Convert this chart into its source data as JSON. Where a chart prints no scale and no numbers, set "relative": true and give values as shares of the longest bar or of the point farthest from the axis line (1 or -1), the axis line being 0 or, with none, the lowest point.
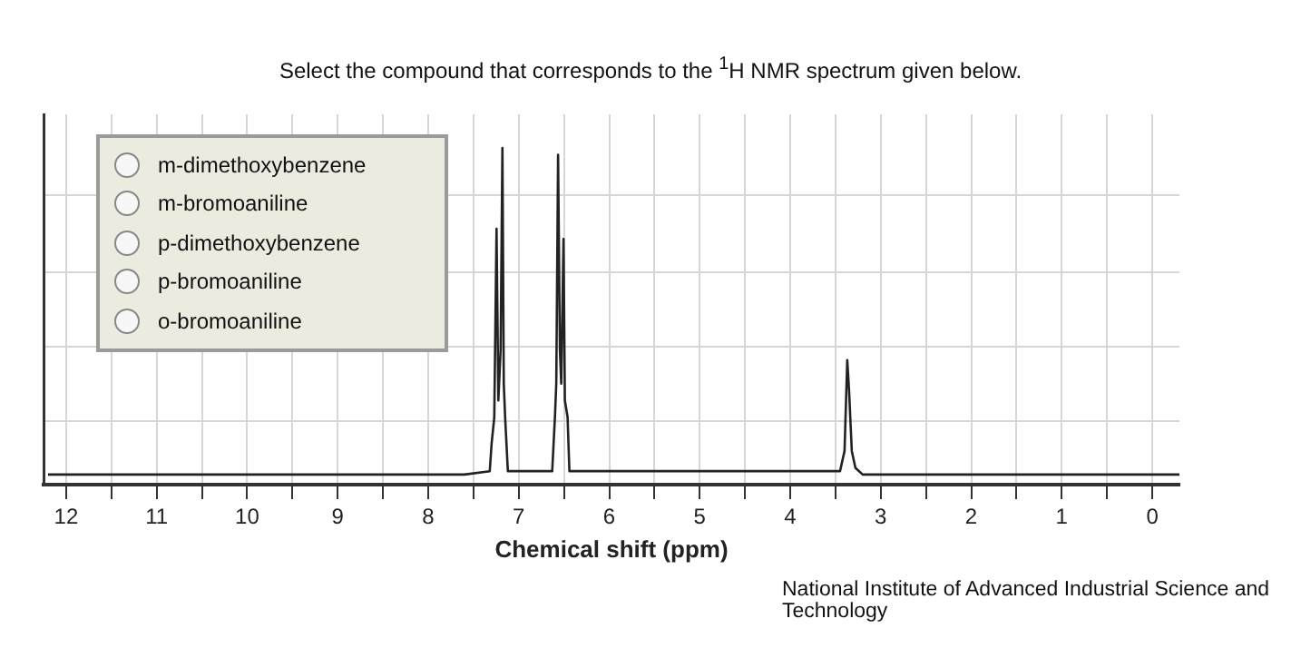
{
  "chart_data": {
    "type": "line",
    "title": "Select the compound that corresponds to the $^{1}$H NMR spectrum given below.",
    "xlabel": "Chemical shift (ppm)",
    "relative": true,
    "grid": true,
    "legend": false,
    "marker": "none",
    "line_style": "solid",
    "xlim": [
      12.25,
      -0.3
    ],
    "xticks": [
      12,
      {
        "value": 11.5,
        "label": null
      },
      11,
      {
        "value": 10.5,
        "label": null
      },
      10,
      {
        "value": 9.5,
        "label": null
      },
      9,
      {
        "value": 8.5,
        "label": null
      },
      8,
      {
        "value": 7.5,
        "label": null
      },
      7,
      {
        "value": 6.5,
        "label": null
      },
      6,
      {
        "value": 5.5,
        "label": null
      },
      5,
      {
        "value": 4.5,
        "label": null
      },
      4,
      {
        "value": 3.5,
        "label": null
      },
      3,
      {
        "value": 2.5,
        "label": null
      },
      2,
      {
        "value": 1.5,
        "label": null
      },
      1,
      {
        "value": 0.5,
        "label": null
      },
      0
    ],
    "series": [
      {
        "color": "#222222",
        "x": [
          12.2,
          11.0,
          9.0,
          7.6,
          7.32,
          7.3,
          7.27,
          7.245,
          7.225,
          7.2,
          7.18,
          7.165,
          7.15,
          7.12,
          6.63,
          6.6,
          6.585,
          6.565,
          6.545,
          6.53,
          6.505,
          6.49,
          6.46,
          6.44,
          3.45,
          3.4,
          3.37,
          3.35,
          3.32,
          3.28,
          3.2,
          0,
          -0.3
        ],
        "values": [
          0.03,
          0.03,
          0.03,
          0.03,
          0.04,
          0.12,
          0.2,
          0.76,
          0.25,
          0.4,
          1.0,
          0.3,
          0.2,
          0.04,
          0.04,
          0.2,
          0.3,
          0.98,
          0.4,
          0.3,
          0.73,
          0.25,
          0.2,
          0.04,
          0.04,
          0.1,
          0.37,
          0.28,
          0.1,
          0.05,
          0.03,
          0.03,
          0.03
        ]
      }
    ],
    "annotations": [
      "m-dimethoxybenzene",
      "m-bromoaniline",
      "p-dimethoxybenzene",
      "p-bromoaniline",
      "o-bromoaniline",
      "National Institute of Advanced Industrial Science and Technology"
    ]
  }
}
